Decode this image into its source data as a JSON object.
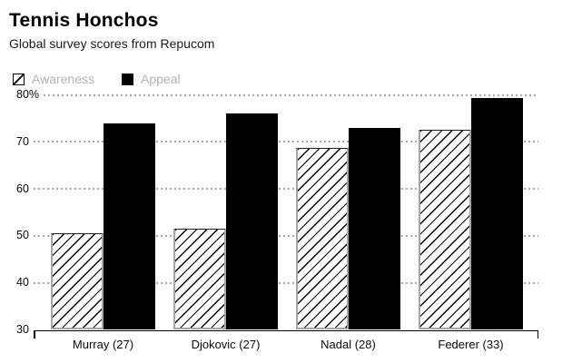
{
  "header": {
    "title": "Tennis Honchos",
    "subtitle": "Global survey scores from Repucom"
  },
  "legend": {
    "items": [
      {
        "label": "Awareness",
        "swatch": "hatched-icon"
      },
      {
        "label": "Appeal",
        "swatch": "solid-black-icon"
      }
    ],
    "text_color": "#b3b3b3"
  },
  "colors": {
    "appeal_bar": "#000000",
    "awareness_hatch": "#000000",
    "awareness_border": "#a6a6a6",
    "gridline": "#a6a6a6",
    "axis": "#000000",
    "background": "#ffffff"
  },
  "chart_data": {
    "type": "bar",
    "title": "Tennis Honchos",
    "subtitle": "Global survey scores from Repucom",
    "categories": [
      "Murray (27)",
      "Djokovic (27)",
      "Nadal (28)",
      "Federer (33)"
    ],
    "series": [
      {
        "name": "Awareness",
        "style": "hatched",
        "values": [
          50.5,
          51.6,
          68.8,
          72.6
        ]
      },
      {
        "name": "Appeal",
        "style": "solid",
        "values": [
          74.0,
          76.1,
          72.9,
          79.4
        ]
      }
    ],
    "ylim": [
      30,
      80
    ],
    "yticks": [
      {
        "value": 80,
        "label": "80%"
      },
      {
        "value": 70,
        "label": "70"
      },
      {
        "value": 60,
        "label": "60"
      },
      {
        "value": 50,
        "label": "50"
      },
      {
        "value": 40,
        "label": "40"
      },
      {
        "value": 30,
        "label": "30"
      }
    ],
    "grid": "dotted-horizontal",
    "legend_position": "top-left",
    "xlabel": "",
    "ylabel": ""
  }
}
